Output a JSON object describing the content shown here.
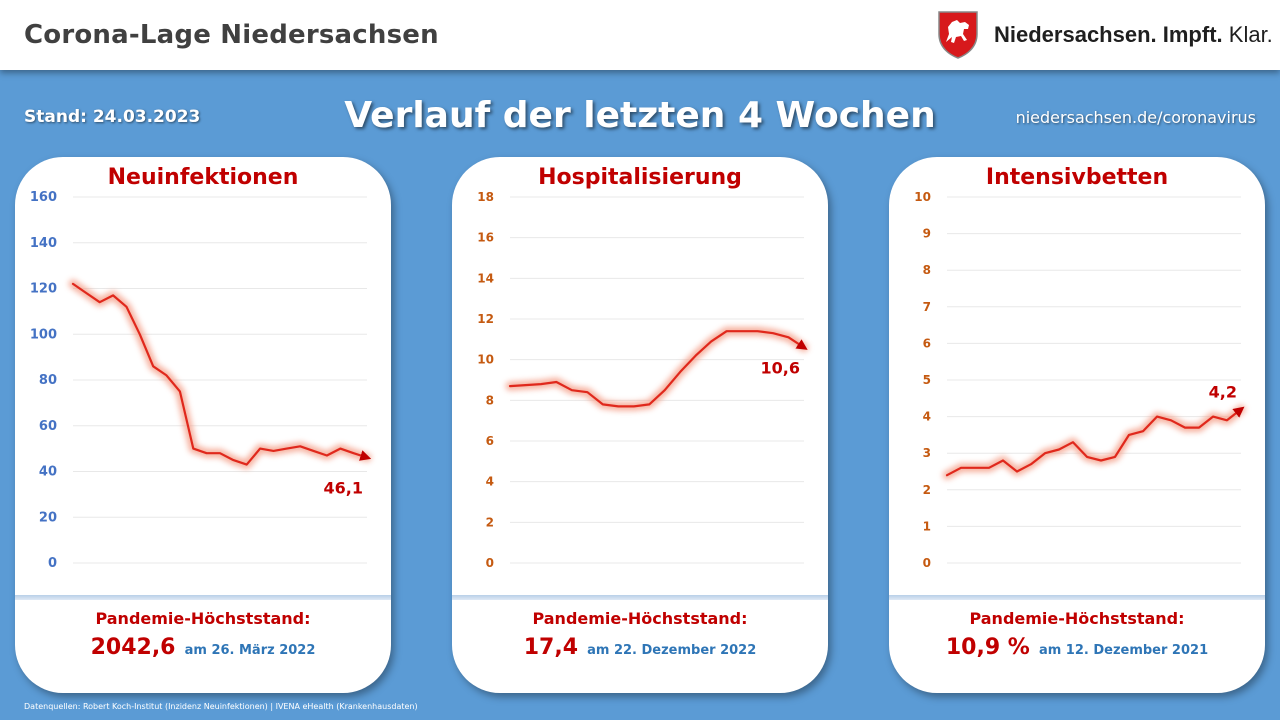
{
  "header": {
    "title": "Corona-Lage Niedersachsen",
    "logo_bold": "Niedersachsen. Impft.",
    "logo_light": "Klar."
  },
  "subheader": {
    "stand": "Stand: 24.03.2023",
    "headline": "Verlauf der letzten 4 Wochen",
    "link": "niedersachsen.de/coronavirus"
  },
  "colors": {
    "background": "#5b9bd5",
    "title_red": "#c00000",
    "date_blue": "#2e75b6",
    "line": "#e0281c"
  },
  "panels": [
    {
      "title": "Neuinfektionen",
      "peak_label": "Pandemie-Höchststand:",
      "peak_value": "2042,6",
      "peak_date": "am 26. März 2022"
    },
    {
      "title": "Hospitalisierung",
      "peak_label": "Pandemie-Höchststand:",
      "peak_value": "17,4",
      "peak_date": "am 22. Dezember 2022"
    },
    {
      "title": "Intensivbetten",
      "peak_label": "Pandemie-Höchststand:",
      "peak_value": "10,9 %",
      "peak_date": "am 12. Dezember 2021"
    }
  ],
  "footer": {
    "sources": "Datenquellen: Robert Koch-Institut (Inzidenz Neuinfektionen) | IVENA eHealth (Krankenhausdaten)"
  },
  "chart_data": [
    {
      "type": "line",
      "title": "Neuinfektionen",
      "ylim": [
        0,
        160
      ],
      "yticks": [
        "0",
        "20",
        "40",
        "60",
        "80",
        "100",
        "120",
        "140",
        "160"
      ],
      "tick_color": "#4472c4",
      "y": [
        122,
        118,
        114,
        117,
        112,
        100,
        86,
        82,
        75,
        50,
        48,
        48,
        45,
        43,
        50,
        49,
        50,
        51,
        49,
        47,
        50,
        48,
        46.1
      ],
      "last_label": "46,1",
      "grid": true
    },
    {
      "type": "line",
      "title": "Hospitalisierung",
      "ylim": [
        0,
        18
      ],
      "yticks": [
        "0",
        "2",
        "4",
        "6",
        "8",
        "10",
        "12",
        "14",
        "16",
        "18"
      ],
      "tick_color": "#c55a11",
      "y": [
        8.7,
        8.75,
        8.8,
        8.9,
        8.5,
        8.4,
        7.8,
        7.7,
        7.7,
        7.8,
        8.5,
        9.4,
        10.2,
        10.9,
        11.4,
        11.4,
        11.4,
        11.3,
        11.1,
        10.6
      ],
      "last_label": "10,6",
      "grid": true
    },
    {
      "type": "line",
      "title": "Intensivbetten",
      "ylim": [
        0,
        10
      ],
      "yticks": [
        "0",
        "1",
        "2",
        "3",
        "4",
        "5",
        "6",
        "7",
        "8",
        "9",
        "10"
      ],
      "tick_color": "#c55a11",
      "y": [
        2.4,
        2.6,
        2.6,
        2.6,
        2.8,
        2.5,
        2.7,
        3.0,
        3.1,
        3.3,
        2.9,
        2.8,
        2.9,
        3.5,
        3.6,
        4.0,
        3.9,
        3.7,
        3.7,
        4.0,
        3.9,
        4.2
      ],
      "last_label": "4,2",
      "grid": true
    }
  ]
}
